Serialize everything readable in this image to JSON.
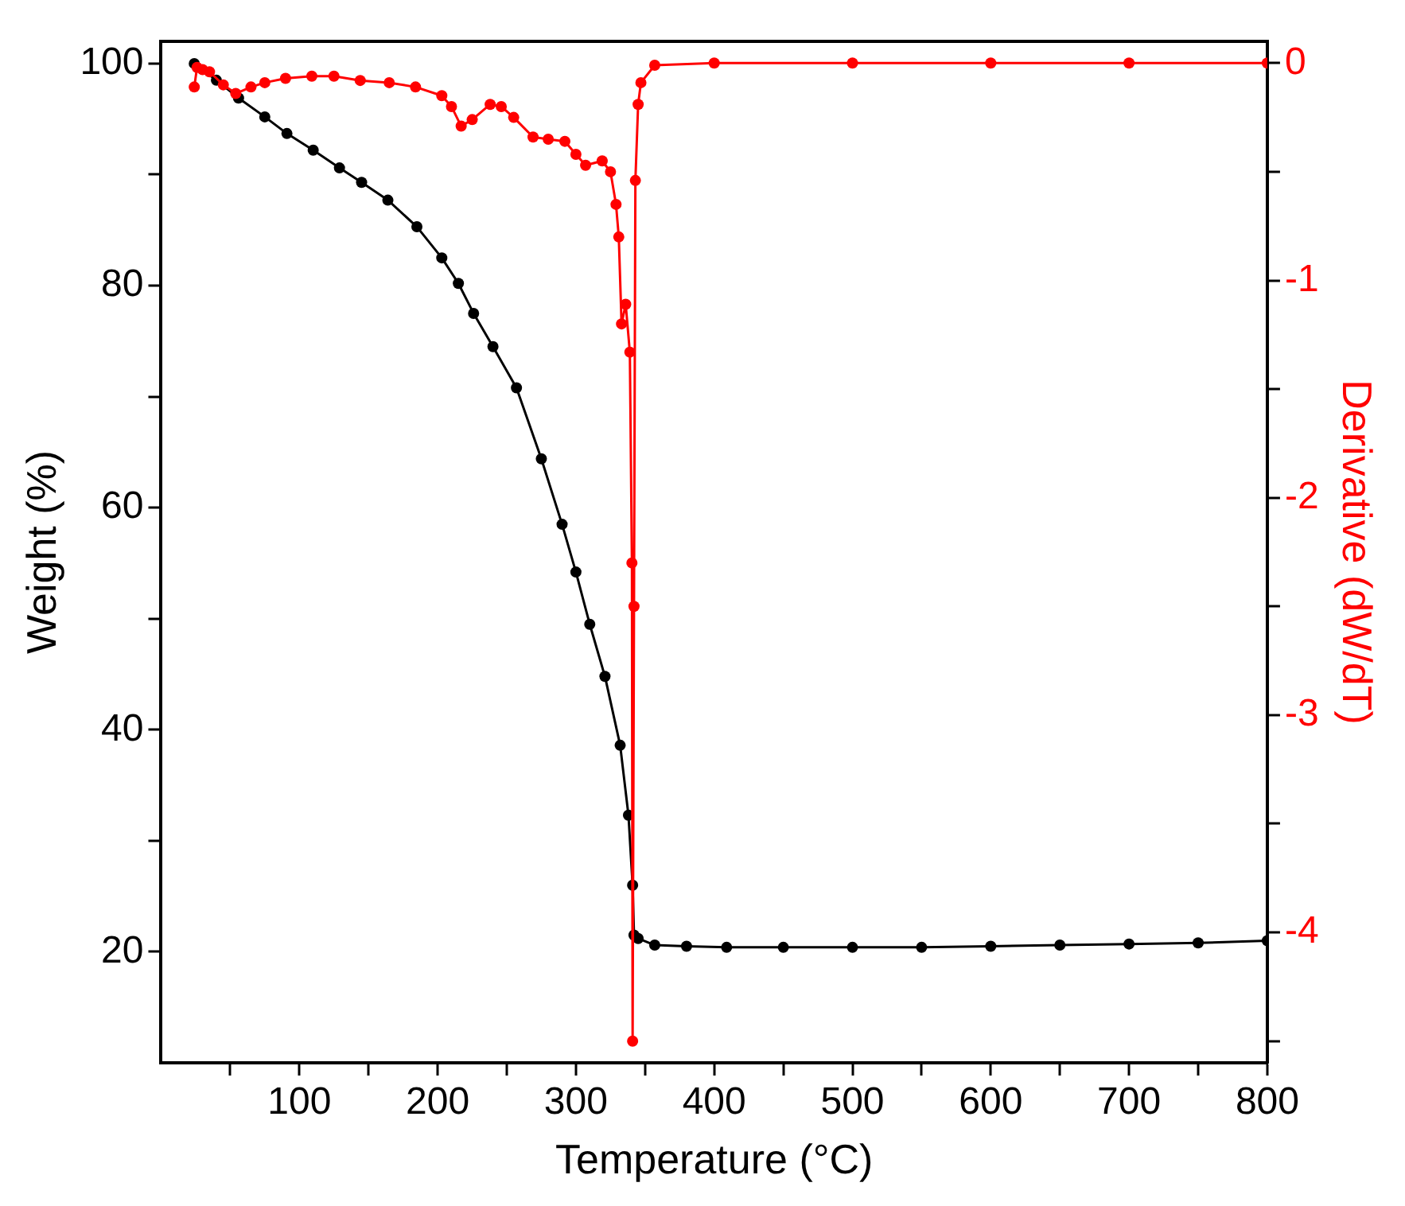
{
  "chart_data": {
    "type": "line",
    "xlabel": "Temperature (°C)",
    "ylabel": "Weight (%)",
    "y2label": "Derivative (dW/dT)",
    "xlim": [
      0,
      800
    ],
    "xticks": [
      {
        "value": 50,
        "label": null
      },
      100,
      {
        "value": 150,
        "label": null
      },
      200,
      {
        "value": 250,
        "label": null
      },
      300,
      {
        "value": 350,
        "label": null
      },
      400,
      {
        "value": 450,
        "label": null
      },
      500,
      {
        "value": 550,
        "label": null
      },
      600,
      {
        "value": 650,
        "label": null
      },
      700,
      {
        "value": 750,
        "label": null
      },
      800
    ],
    "ylim": [
      10,
      102
    ],
    "yticks": [
      20,
      {
        "value": 30,
        "label": null
      },
      40,
      {
        "value": 50,
        "label": null
      },
      60,
      {
        "value": 70,
        "label": null
      },
      80,
      {
        "value": 90,
        "label": null
      },
      100
    ],
    "y2lim": [
      -4.6,
      0.1
    ],
    "y2ticks": [
      {
        "value": -4.5,
        "label": null
      },
      -4,
      {
        "value": -3.5,
        "label": null
      },
      -3,
      {
        "value": -2.5,
        "label": null
      },
      -2,
      {
        "value": -1.5,
        "label": null
      },
      -1,
      {
        "value": -0.5,
        "label": null
      },
      0
    ],
    "marker": "circle",
    "line_style": "solid",
    "grid": false,
    "legend": false,
    "series": [
      {
        "color": "#000000",
        "x": [
          24,
          40,
          56,
          75,
          91,
          110,
          129,
          145,
          164,
          185,
          203,
          215,
          226,
          240,
          257,
          275,
          290,
          300,
          310,
          321,
          332,
          338,
          341,
          342,
          345,
          357,
          380,
          409,
          450,
          500,
          550,
          600,
          650,
          700,
          750,
          800
        ],
        "values": [
          100,
          98.5,
          96.9,
          95.2,
          93.7,
          92.2,
          90.6,
          89.3,
          87.7,
          85.3,
          82.5,
          80.2,
          77.5,
          74.5,
          70.8,
          64.4,
          58.5,
          54.2,
          49.5,
          44.8,
          38.6,
          32.3,
          26,
          21.5,
          21.2,
          20.6,
          20.5,
          20.4,
          20.4,
          20.4,
          20.4,
          20.5,
          20.6,
          20.7,
          20.8,
          21
        ]
      },
      {
        "color": "#ff0000",
        "axis": "y2",
        "x": [
          24,
          26,
          30,
          35,
          45,
          54,
          65,
          75,
          90,
          109,
          125,
          144,
          165,
          184,
          203,
          210,
          217,
          225,
          238,
          246,
          255,
          269,
          280,
          292,
          300,
          307,
          319,
          325,
          329,
          331,
          333,
          336,
          339,
          340.5,
          341,
          342,
          343,
          345,
          347,
          357,
          400,
          500,
          600,
          700,
          800
        ],
        "values": [
          -0.11,
          -0.02,
          -0.03,
          -0.04,
          -0.1,
          -0.14,
          -0.11,
          -0.09,
          -0.07,
          -0.06,
          -0.06,
          -0.08,
          -0.09,
          -0.11,
          -0.15,
          -0.2,
          -0.29,
          -0.26,
          -0.19,
          -0.2,
          -0.25,
          -0.34,
          -0.35,
          -0.36,
          -0.42,
          -0.47,
          -0.45,
          -0.5,
          -0.65,
          -0.8,
          -1.2,
          -1.11,
          -1.33,
          -2.3,
          -4.5,
          -2.5,
          -0.54,
          -0.19,
          -0.09,
          -0.01,
          0,
          0,
          0,
          0,
          0
        ]
      }
    ]
  }
}
